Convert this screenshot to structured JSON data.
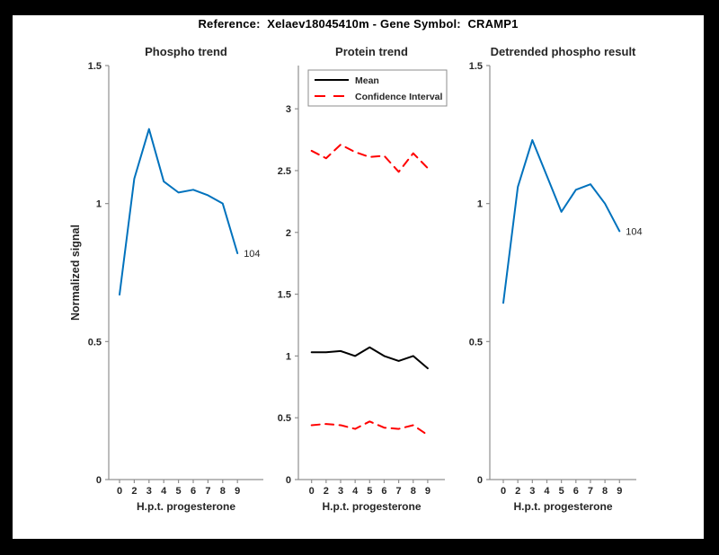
{
  "figure_title": "Reference:  Xelaev18045410m - Gene Symbol:  CRAMP1",
  "colors": {
    "line_blue": "#0072bd",
    "mean_black": "#000000",
    "ci_red": "#ff0000",
    "axis_line": "#909090",
    "label_text": "#262626",
    "background": "#ffffff",
    "frame": "#000000"
  },
  "chart_data": [
    {
      "type": "line",
      "title": "Phospho trend",
      "xlabel": "H.p.t. progesterone",
      "ylabel": "Normalized signal",
      "x_tick_labels": [
        "0",
        "2",
        "3",
        "4",
        "5",
        "6",
        "7",
        "8",
        "9"
      ],
      "yticks": [
        0,
        0.5,
        1,
        1.5
      ],
      "ytick_labels": [
        "0",
        "0.5",
        "1",
        "1.5"
      ],
      "ylim": [
        0,
        1.5
      ],
      "grid": false,
      "series": [
        {
          "name": "phospho-signal",
          "color": "#0072bd",
          "style": "solid",
          "values": [
            0.67,
            1.09,
            1.27,
            1.08,
            1.04,
            1.05,
            1.03,
            1.0,
            0.82
          ]
        }
      ],
      "end_label": "104"
    },
    {
      "type": "line",
      "title": "Protein trend",
      "xlabel": "H.p.t. progesterone",
      "ylabel": "",
      "x_tick_labels": [
        "0",
        "2",
        "3",
        "4",
        "5",
        "6",
        "7",
        "8",
        "9"
      ],
      "yticks": [
        0,
        0.5,
        1,
        1.5,
        2,
        2.5,
        3
      ],
      "ytick_labels": [
        "0",
        "0.5",
        "1",
        "1.5",
        "2",
        "2.5",
        "3"
      ],
      "ylim": [
        0,
        3.35
      ],
      "grid": false,
      "legend_position": "northwest-inside",
      "legend": [
        {
          "label": "Mean",
          "style": "solid",
          "color": "#000000"
        },
        {
          "label": "Confidence Interval",
          "style": "dashed",
          "color": "#ff0000"
        }
      ],
      "series": [
        {
          "name": "confidence-interval-upper",
          "color": "#ff0000",
          "style": "dashed",
          "values": [
            2.66,
            2.6,
            2.71,
            2.65,
            2.61,
            2.62,
            2.49,
            2.64,
            2.52
          ]
        },
        {
          "name": "mean",
          "color": "#000000",
          "style": "solid",
          "values": [
            1.03,
            1.03,
            1.04,
            1.0,
            1.07,
            1.0,
            0.96,
            1.0,
            0.9
          ]
        },
        {
          "name": "confidence-interval-lower",
          "color": "#ff0000",
          "style": "dashed",
          "values": [
            0.44,
            0.45,
            0.44,
            0.41,
            0.47,
            0.42,
            0.41,
            0.44,
            0.36
          ]
        }
      ],
      "end_label": ""
    },
    {
      "type": "line",
      "title": "Detrended phospho result",
      "xlabel": "H.p.t. progesterone",
      "ylabel": "",
      "x_tick_labels": [
        "0",
        "2",
        "3",
        "4",
        "5",
        "6",
        "7",
        "8",
        "9"
      ],
      "yticks": [
        0,
        0.5,
        1,
        1.5
      ],
      "ytick_labels": [
        "0",
        "0.5",
        "1",
        "1.5"
      ],
      "ylim": [
        0,
        1.5
      ],
      "grid": false,
      "series": [
        {
          "name": "detrended-phospho-signal",
          "color": "#0072bd",
          "style": "solid",
          "values": [
            0.64,
            1.06,
            1.23,
            1.1,
            0.97,
            1.05,
            1.07,
            1.0,
            0.9
          ]
        }
      ],
      "end_label": "104"
    }
  ]
}
